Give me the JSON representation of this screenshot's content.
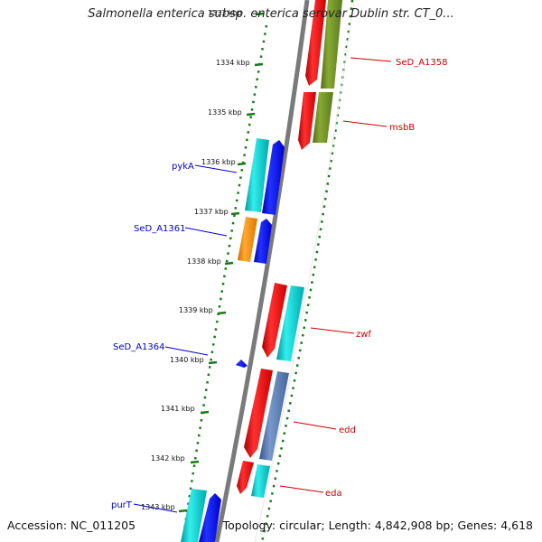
{
  "title": "Salmonella enterica subsp. enterica serovar Dublin str. CT_0...",
  "footer": {
    "accession": "Accession: NC_011205",
    "summary": "Topology: circular; Length: 4,842,908 bp; Genes: 4,618"
  },
  "ticks": [
    "1333 kbp",
    "1334 kbp",
    "1335 kbp",
    "1336 kbp",
    "1337 kbp",
    "1338 kbp",
    "1339 kbp",
    "1340 kbp",
    "1341 kbp",
    "1342 kbp",
    "1343 kbp"
  ],
  "gene_labels": {
    "right": [
      {
        "text": "SeD_A1358"
      },
      {
        "text": "msbB"
      },
      {
        "text": "zwf"
      },
      {
        "text": "edd"
      },
      {
        "text": "eda"
      }
    ],
    "left": [
      {
        "text": "pykA"
      },
      {
        "text": "SeD_A1361"
      },
      {
        "text": "SeD_A1364"
      },
      {
        "text": "purT"
      }
    ]
  },
  "colors": {
    "backbone": "#808080",
    "tick": "#1a7a1a",
    "forward_label": "#cc0000",
    "reverse_label": "#0000cc",
    "red": "#ee0000",
    "olive": "#6b8e23",
    "cyan": "#00cccc",
    "blue": "#0000ee",
    "orange": "#ff8800",
    "steelblue": "#5577aa",
    "navy": "#333399"
  }
}
